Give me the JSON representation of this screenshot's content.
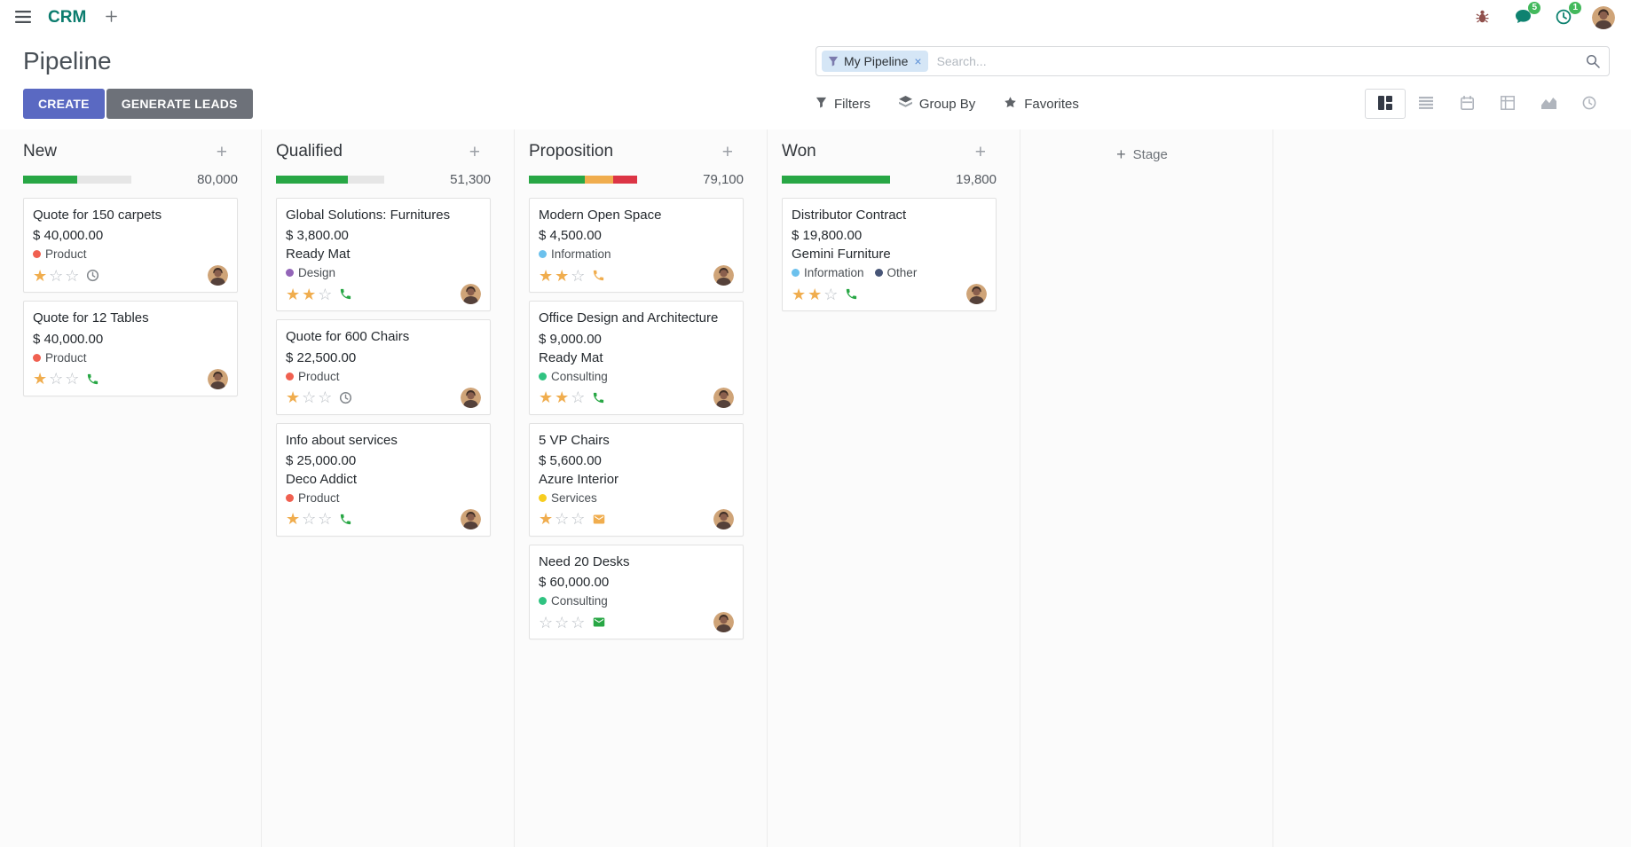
{
  "navbar": {
    "brand": "CRM",
    "messages_badge": "5",
    "activities_badge": "1"
  },
  "control_panel": {
    "title": "Pipeline",
    "search": {
      "facet": "My Pipeline",
      "placeholder": "Search..."
    },
    "create_label": "CREATE",
    "generate_leads_label": "GENERATE LEADS",
    "filters_label": "Filters",
    "group_by_label": "Group By",
    "favorites_label": "Favorites"
  },
  "kanban": {
    "add_stage_label": "Stage",
    "columns": [
      {
        "name": "New",
        "total": "80,000",
        "progress": [
          {
            "status": "success",
            "color": "#28a745",
            "pct": 50
          },
          {
            "status": "muted",
            "color": "#e6e6e6",
            "pct": 50
          }
        ],
        "cards": [
          {
            "title": "Quote for 150 carpets",
            "amount": "$ 40,000.00",
            "partner": "",
            "tags": [
              {
                "label": "Product",
                "color": "#F06050"
              }
            ],
            "stars": 1,
            "activity": {
              "type": "clock",
              "color": "#82878c"
            }
          },
          {
            "title": "Quote for 12 Tables",
            "amount": "$ 40,000.00",
            "partner": "",
            "tags": [
              {
                "label": "Product",
                "color": "#F06050"
              }
            ],
            "stars": 1,
            "activity": {
              "type": "phone",
              "color": "#28a745"
            }
          }
        ]
      },
      {
        "name": "Qualified",
        "total": "51,300",
        "progress": [
          {
            "status": "success",
            "color": "#28a745",
            "pct": 66
          },
          {
            "status": "muted",
            "color": "#e6e6e6",
            "pct": 34
          }
        ],
        "cards": [
          {
            "title": "Global Solutions: Furnitures",
            "amount": "$ 3,800.00",
            "partner": "Ready Mat",
            "tags": [
              {
                "label": "Design",
                "color": "#9365B8"
              }
            ],
            "stars": 2,
            "activity": {
              "type": "phone",
              "color": "#28a745"
            }
          },
          {
            "title": "Quote for 600 Chairs",
            "amount": "$ 22,500.00",
            "partner": "",
            "tags": [
              {
                "label": "Product",
                "color": "#F06050"
              }
            ],
            "stars": 1,
            "activity": {
              "type": "clock",
              "color": "#82878c"
            }
          },
          {
            "title": "Info about services",
            "amount": "$ 25,000.00",
            "partner": "Deco Addict",
            "tags": [
              {
                "label": "Product",
                "color": "#F06050"
              }
            ],
            "stars": 1,
            "activity": {
              "type": "phone",
              "color": "#28a745"
            }
          }
        ]
      },
      {
        "name": "Proposition",
        "total": "79,100",
        "progress": [
          {
            "status": "success",
            "color": "#28a745",
            "pct": 52
          },
          {
            "status": "warning",
            "color": "#f0ad4e",
            "pct": 26
          },
          {
            "status": "danger",
            "color": "#dc3545",
            "pct": 22
          }
        ],
        "cards": [
          {
            "title": "Modern Open Space",
            "amount": "$ 4,500.00",
            "partner": "",
            "tags": [
              {
                "label": "Information",
                "color": "#6CC1ED"
              }
            ],
            "stars": 2,
            "activity": {
              "type": "phone",
              "color": "#f0ad4e"
            }
          },
          {
            "title": "Office Design and Architecture",
            "amount": "$ 9,000.00",
            "partner": "Ready Mat",
            "tags": [
              {
                "label": "Consulting",
                "color": "#30C381"
              }
            ],
            "stars": 2,
            "activity": {
              "type": "phone",
              "color": "#28a745"
            }
          },
          {
            "title": "5 VP Chairs",
            "amount": "$ 5,600.00",
            "partner": "Azure Interior",
            "tags": [
              {
                "label": "Services",
                "color": "#F7CD1F"
              }
            ],
            "stars": 1,
            "activity": {
              "type": "envelope",
              "color": "#f0ad4e"
            }
          },
          {
            "title": "Need 20 Desks",
            "amount": "$ 60,000.00",
            "partner": "",
            "tags": [
              {
                "label": "Consulting",
                "color": "#30C381"
              }
            ],
            "stars": 0,
            "activity": {
              "type": "envelope",
              "color": "#28a745"
            }
          }
        ]
      },
      {
        "name": "Won",
        "total": "19,800",
        "progress": [
          {
            "status": "success",
            "color": "#28a745",
            "pct": 100
          }
        ],
        "cards": [
          {
            "title": "Distributor Contract",
            "amount": "$ 19,800.00",
            "partner": "Gemini Furniture",
            "tags": [
              {
                "label": "Information",
                "color": "#6CC1ED"
              },
              {
                "label": "Other",
                "color": "#475577"
              }
            ],
            "stars": 2,
            "activity": {
              "type": "phone",
              "color": "#28a745"
            }
          }
        ]
      }
    ]
  }
}
